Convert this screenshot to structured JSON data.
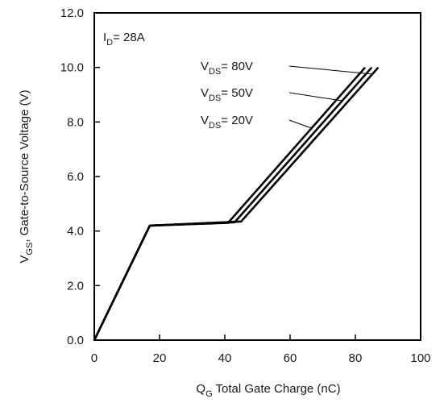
{
  "chart_data": {
    "type": "line",
    "xlabel_main": "Q",
    "xlabel_sub": "G",
    "xlabel_rest": "  Total Gate Charge (nC)",
    "ylabel_main": "V",
    "ylabel_sub": "GS",
    "ylabel_rest": ", Gate-to-Source Voltage (V)",
    "xlim": [
      0,
      100
    ],
    "ylim": [
      0,
      12
    ],
    "x_ticks": [
      "0",
      "20",
      "40",
      "60",
      "80",
      "100"
    ],
    "y_ticks": [
      "0.0",
      "2.0",
      "4.0",
      "6.0",
      "8.0",
      "10.0",
      "12.0"
    ],
    "grid": false,
    "condition": {
      "main": "I",
      "sub": "D",
      "rest": "= 28A"
    },
    "series": [
      {
        "label_main": "V",
        "label_sub": "DS",
        "label_rest": "= 80V",
        "x": [
          0,
          17,
          45,
          87
        ],
        "y": [
          0,
          4.2,
          4.35,
          10.0
        ]
      },
      {
        "label_main": "V",
        "label_sub": "DS",
        "label_rest": "= 50V",
        "x": [
          0,
          17,
          43,
          85
        ],
        "y": [
          0,
          4.2,
          4.32,
          10.0
        ]
      },
      {
        "label_main": "V",
        "label_sub": "DS",
        "label_rest": "= 20V",
        "x": [
          0,
          17,
          41,
          83
        ],
        "y": [
          0,
          4.2,
          4.3,
          10.0
        ]
      }
    ],
    "colors": {
      "line": "#000000",
      "text": "#1a1a1a",
      "background": "#ffffff"
    }
  }
}
